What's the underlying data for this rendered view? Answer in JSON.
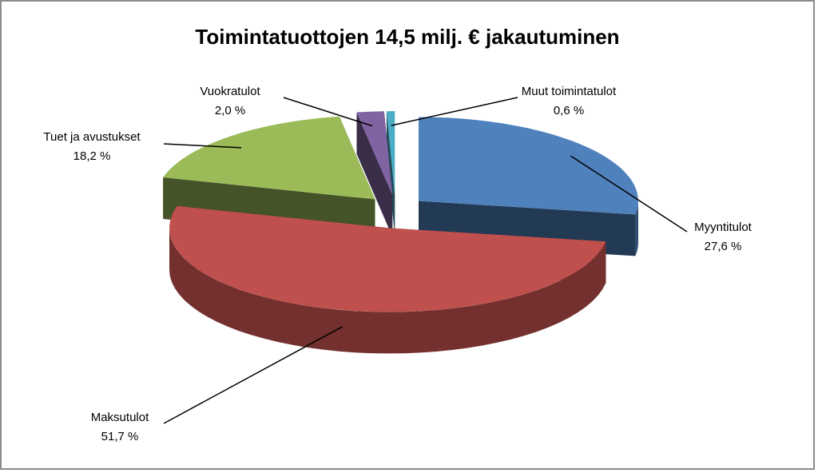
{
  "chart_data": {
    "type": "pie",
    "title": "Toimintatuottojen 14,5 milj. € jakautuminen",
    "categories": [
      "Myyntitulot",
      "Maksutulot",
      "Tuet ja avustukset",
      "Vuokratulot",
      "Muut toimintatulot"
    ],
    "values": [
      27.6,
      51.7,
      18.2,
      2.0,
      0.6
    ],
    "value_labels": [
      "27,6 %",
      "51,7 %",
      "18,2 %",
      "2,0 %",
      "0,6 %"
    ],
    "colors": [
      "#4f81bd",
      "#c0504d",
      "#9bbb59",
      "#8064a2",
      "#4bacc6"
    ]
  }
}
